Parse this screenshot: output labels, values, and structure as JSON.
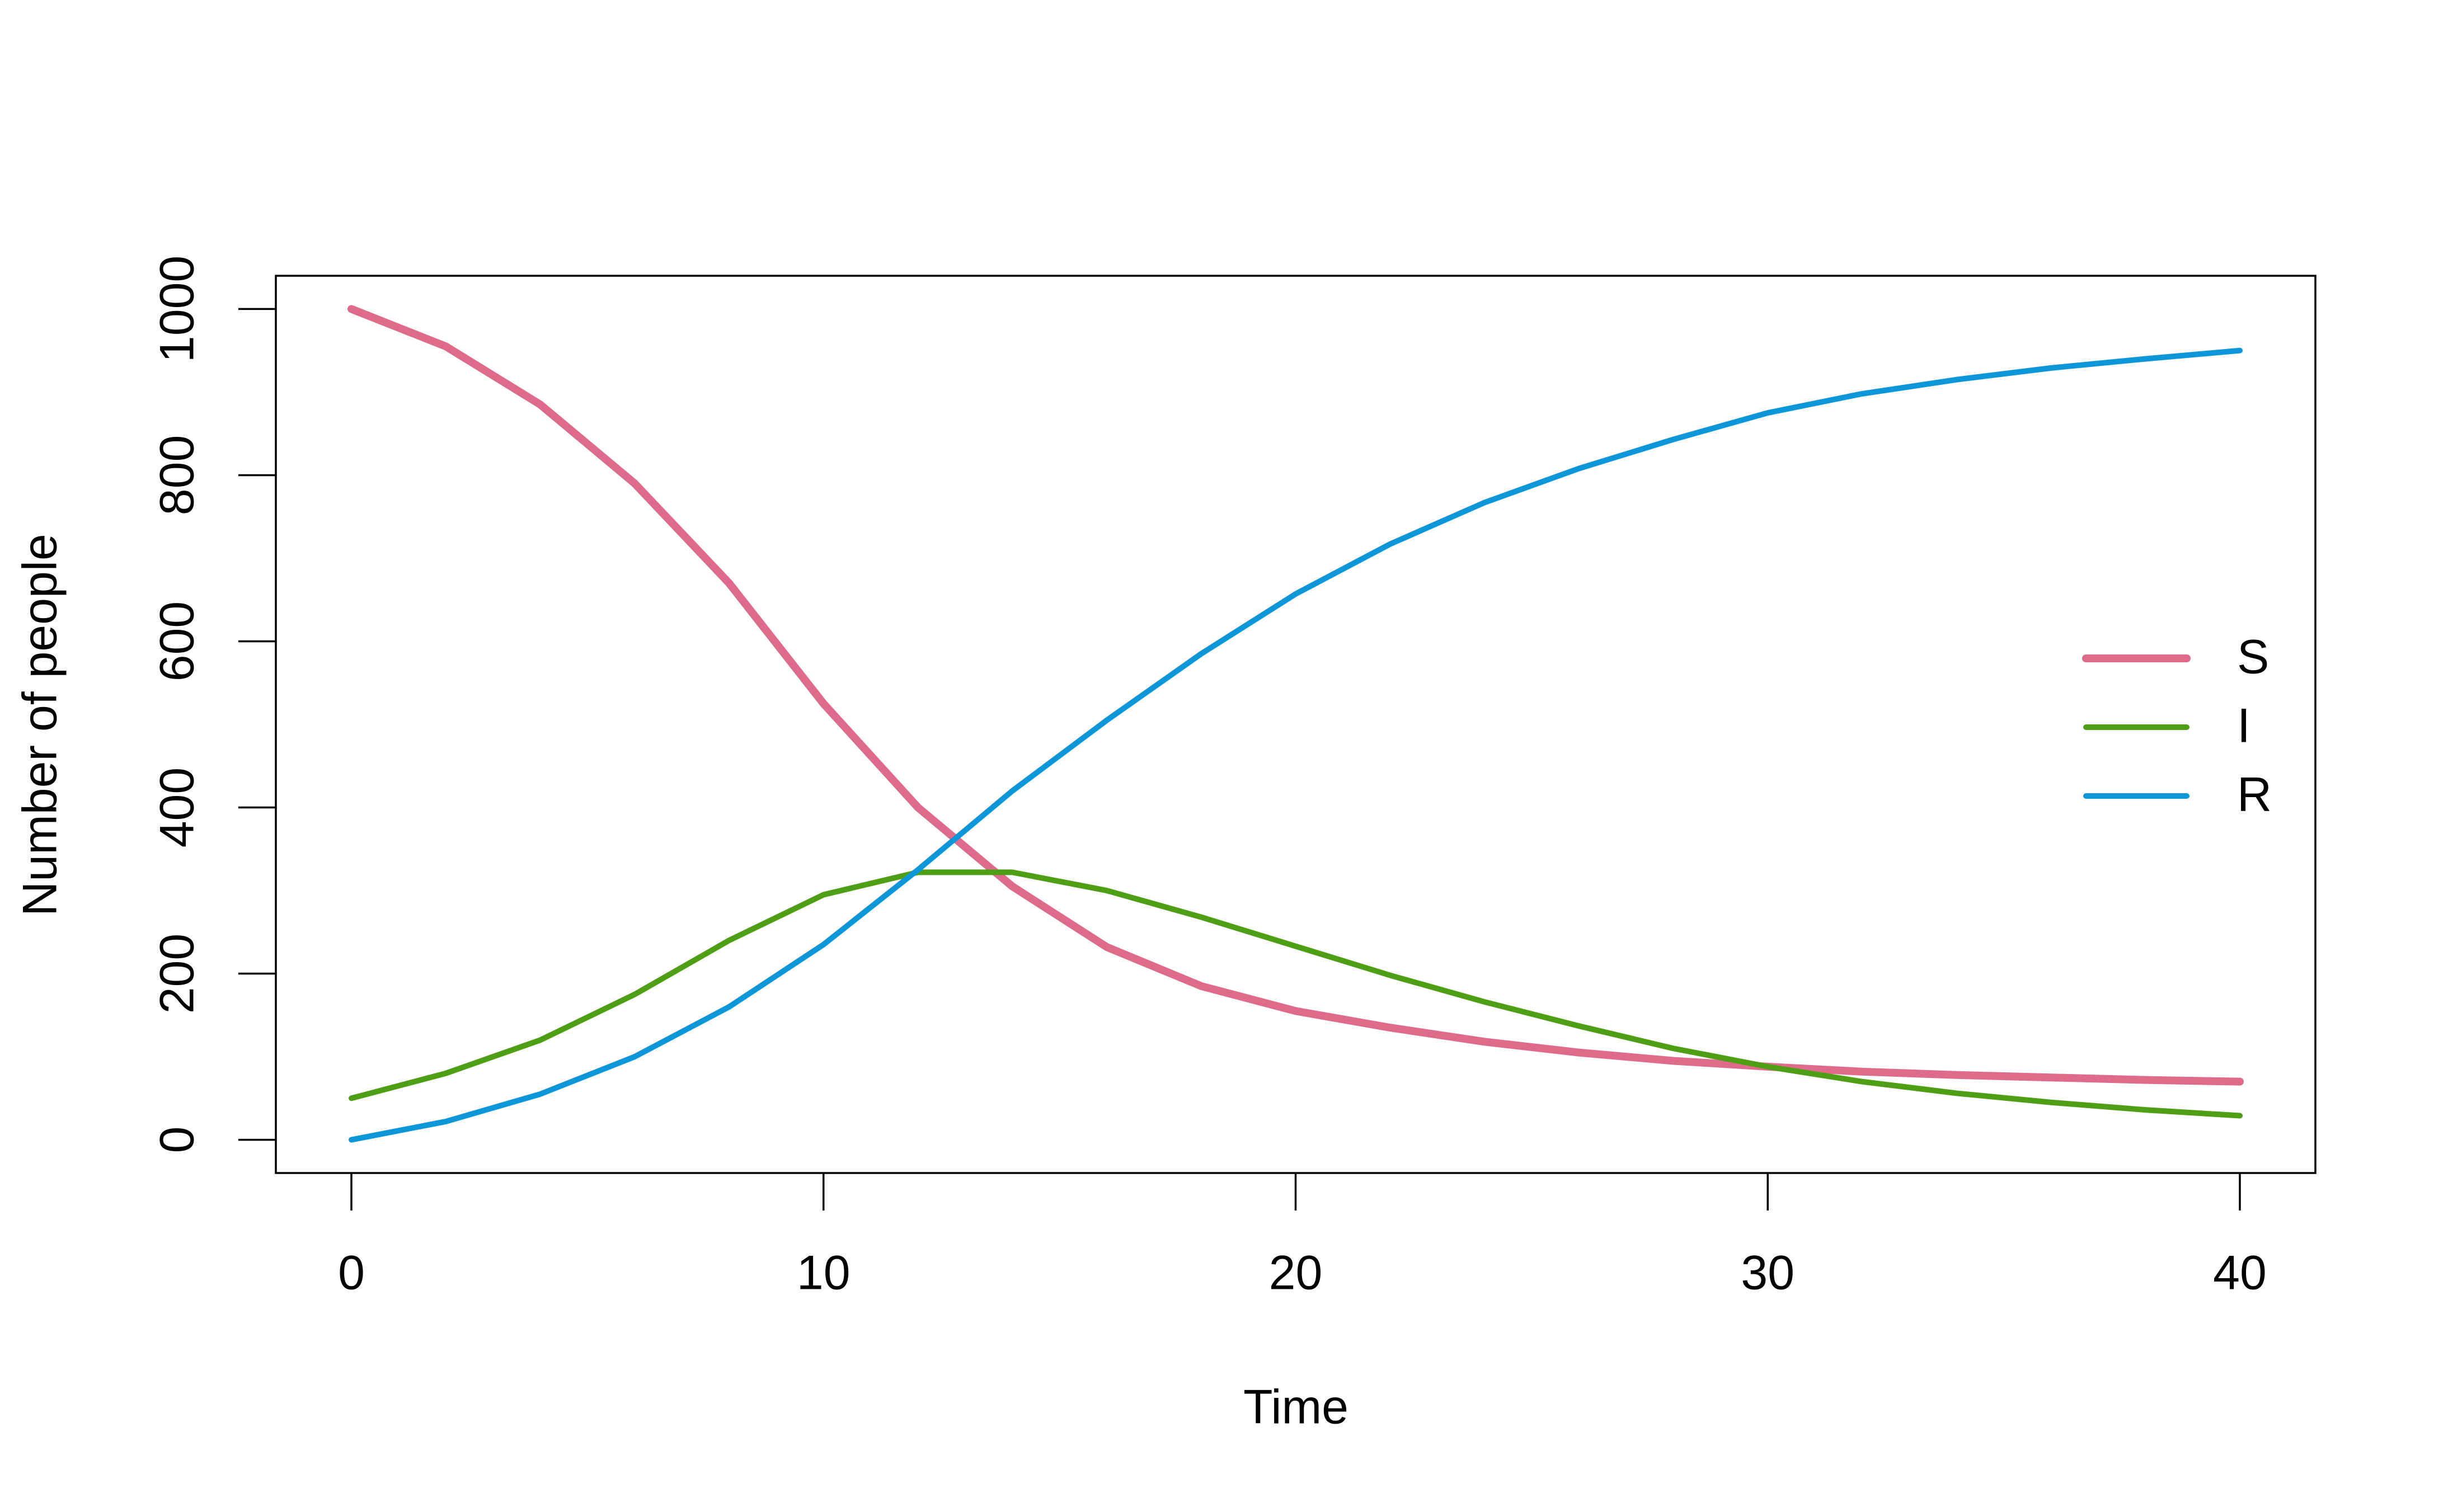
{
  "chart_data": {
    "type": "line",
    "x": [
      0,
      2,
      4,
      6,
      8,
      10,
      12,
      14,
      16,
      18,
      20,
      22,
      24,
      26,
      28,
      30,
      32,
      34,
      36,
      38,
      40
    ],
    "series": [
      {
        "name": "S",
        "color": "#df6b8a",
        "values": [
          1000,
          955,
          885,
          790,
          670,
          525,
          400,
          305,
          232,
          185,
          155,
          135,
          118,
          105,
          95,
          88,
          82,
          78,
          75,
          72,
          70
        ]
      },
      {
        "name": "I",
        "color": "#4e9f16",
        "values": [
          50,
          80,
          120,
          175,
          240,
          295,
          322,
          322,
          300,
          268,
          233,
          198,
          166,
          137,
          110,
          88,
          70,
          56,
          45,
          36,
          29
        ]
      },
      {
        "name": "R",
        "color": "#0e97d8",
        "values": [
          0,
          22,
          55,
          100,
          160,
          235,
          325,
          420,
          505,
          585,
          657,
          717,
          767,
          808,
          843,
          875,
          898,
          915,
          929,
          940,
          950
        ]
      }
    ],
    "x_label": "Time",
    "y_label": "Number of people",
    "xlim": [
      -1.6,
      41.6
    ],
    "ylim": [
      -40,
      1040
    ],
    "xticks": [
      0,
      10,
      20,
      30,
      40
    ],
    "yticks": [
      0,
      200,
      400,
      600,
      800,
      1000
    ],
    "legend": "right",
    "grid": false
  }
}
